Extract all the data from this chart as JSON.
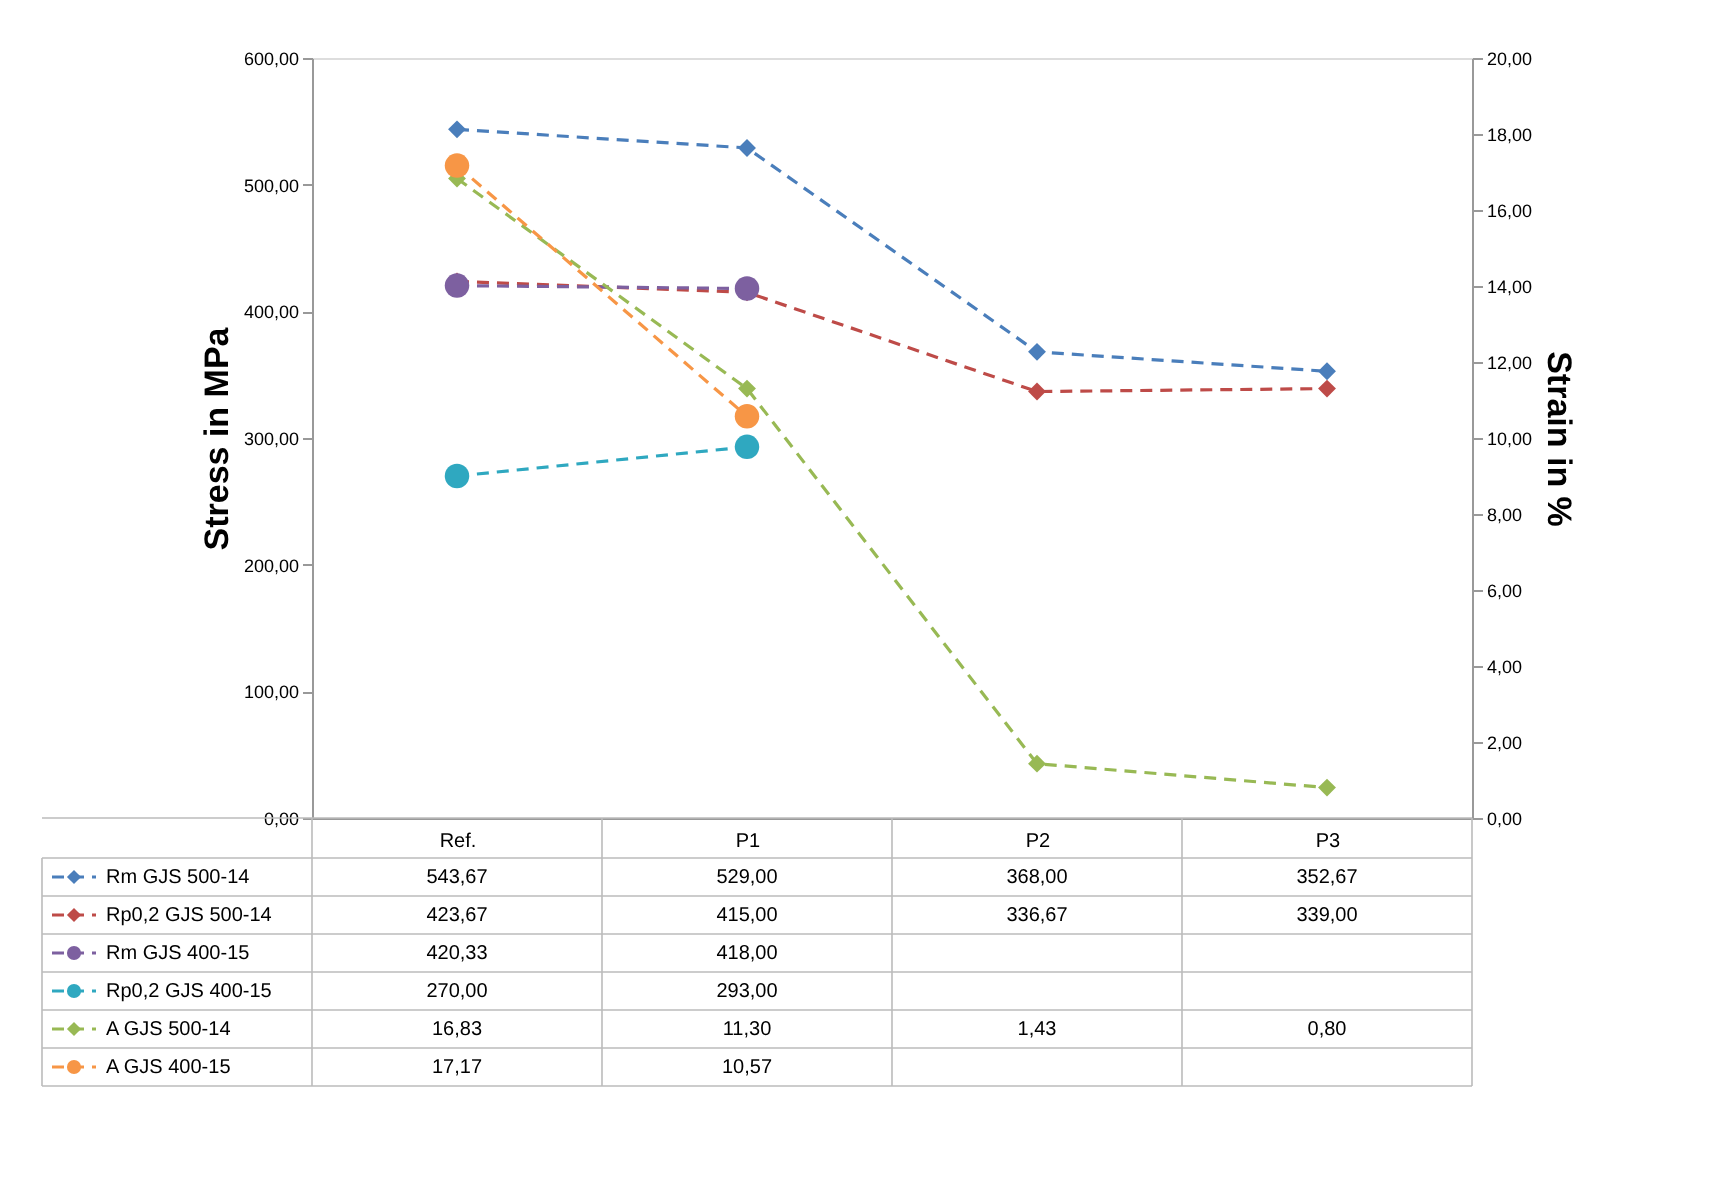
{
  "chart_data": {
    "type": "line",
    "ylabel": "Stress in MPa",
    "y2label": "Strain in %",
    "categories": [
      "Ref.",
      "P1",
      "P2",
      "P3"
    ],
    "series": [
      {
        "name": "Rm GJS 500-14",
        "color": "#4a7ebb",
        "marker": "diamond",
        "values": [
          543.67,
          529.0,
          368.0,
          352.67
        ],
        "value_labels": [
          "543,67",
          "529,00",
          "368,00",
          "352,67"
        ]
      },
      {
        "name": "Rp0,2 GJS 500-14",
        "color": "#be4b48",
        "marker": "diamond",
        "values": [
          423.67,
          415.0,
          336.67,
          339.0
        ],
        "value_labels": [
          "423,67",
          "415,00",
          "336,67",
          "339,00"
        ]
      },
      {
        "name": "Rm GJS 400-15",
        "color": "#7d60a0",
        "marker": "circle",
        "values": [
          420.33,
          418.0,
          null,
          null
        ],
        "value_labels": [
          "420,33",
          "418,00",
          null,
          null
        ]
      },
      {
        "name": "Rp0,2 GJS 400-15",
        "color": "#2fa8c0",
        "marker": "circle",
        "values": [
          270.0,
          293.0,
          null,
          null
        ],
        "value_labels": [
          "270,00",
          "293,00",
          null,
          null
        ]
      },
      {
        "name": "A GJS 500-14",
        "color": "#98b954",
        "marker": "diamond",
        "axis": "y2",
        "values": [
          16.83,
          11.3,
          1.43,
          0.8
        ],
        "value_labels": [
          "16,83",
          "11,30",
          "1,43",
          "0,80"
        ]
      },
      {
        "name": "A GJS 400-15",
        "color": "#f79646",
        "marker": "circle",
        "axis": "y2",
        "values": [
          17.17,
          10.57,
          null,
          null
        ],
        "value_labels": [
          "17,17",
          "10,57",
          null,
          null
        ]
      }
    ],
    "ylim": [
      0,
      600
    ],
    "yticks": [
      {
        "value": 0,
        "label": "0,00"
      },
      {
        "value": 100,
        "label": "100,00"
      },
      {
        "value": 200,
        "label": "200,00"
      },
      {
        "value": 300,
        "label": "300,00"
      },
      {
        "value": 400,
        "label": "400,00"
      },
      {
        "value": 500,
        "label": "500,00"
      },
      {
        "value": 600,
        "label": "600,00"
      }
    ],
    "y2lim": [
      0,
      20
    ],
    "y2ticks": [
      {
        "value": 0,
        "label": "0,00"
      },
      {
        "value": 2,
        "label": "2,00"
      },
      {
        "value": 4,
        "label": "4,00"
      },
      {
        "value": 6,
        "label": "6,00"
      },
      {
        "value": 8,
        "label": "8,00"
      },
      {
        "value": 10,
        "label": "10,00"
      },
      {
        "value": 12,
        "label": "12,00"
      },
      {
        "value": 14,
        "label": "14,00"
      },
      {
        "value": 16,
        "label": "16,00"
      },
      {
        "value": 18,
        "label": "18,00"
      },
      {
        "value": 20,
        "label": "20,00"
      }
    ],
    "line_style": "dashed",
    "grid": false,
    "legend": "bottom left"
  }
}
